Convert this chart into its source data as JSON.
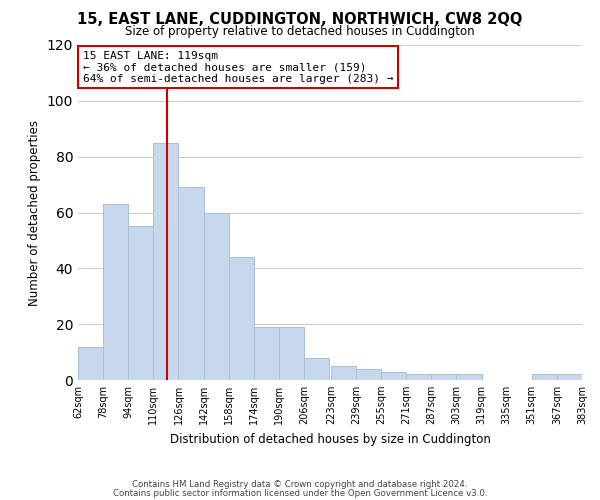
{
  "title": "15, EAST LANE, CUDDINGTON, NORTHWICH, CW8 2QQ",
  "subtitle": "Size of property relative to detached houses in Cuddington",
  "xlabel": "Distribution of detached houses by size in Cuddington",
  "ylabel": "Number of detached properties",
  "bins": [
    62,
    78,
    94,
    110,
    126,
    142,
    158,
    174,
    190,
    206,
    223,
    239,
    255,
    271,
    287,
    303,
    319,
    335,
    351,
    367,
    383
  ],
  "bin_labels": [
    "62sqm",
    "78sqm",
    "94sqm",
    "110sqm",
    "126sqm",
    "142sqm",
    "158sqm",
    "174sqm",
    "190sqm",
    "206sqm",
    "223sqm",
    "239sqm",
    "255sqm",
    "271sqm",
    "287sqm",
    "303sqm",
    "319sqm",
    "335sqm",
    "351sqm",
    "367sqm",
    "383sqm"
  ],
  "counts": [
    12,
    63,
    55,
    85,
    69,
    60,
    44,
    19,
    19,
    8,
    5,
    4,
    3,
    2,
    2,
    2,
    0,
    0,
    2,
    2,
    0
  ],
  "bar_color": "#c8d8ec",
  "bar_edge_color": "#a8c0d8",
  "vline_x": 119,
  "vline_color": "#cc0000",
  "annotation_title": "15 EAST LANE: 119sqm",
  "annotation_line1": "← 36% of detached houses are smaller (159)",
  "annotation_line2": "64% of semi-detached houses are larger (283) →",
  "annotation_box_color": "#ffffff",
  "annotation_box_edge": "#cc0000",
  "ylim": [
    0,
    120
  ],
  "yticks": [
    0,
    20,
    40,
    60,
    80,
    100,
    120
  ],
  "footnote1": "Contains HM Land Registry data © Crown copyright and database right 2024.",
  "footnote2": "Contains public sector information licensed under the Open Government Licence v3.0.",
  "background_color": "#ffffff",
  "grid_color": "#cccccc"
}
